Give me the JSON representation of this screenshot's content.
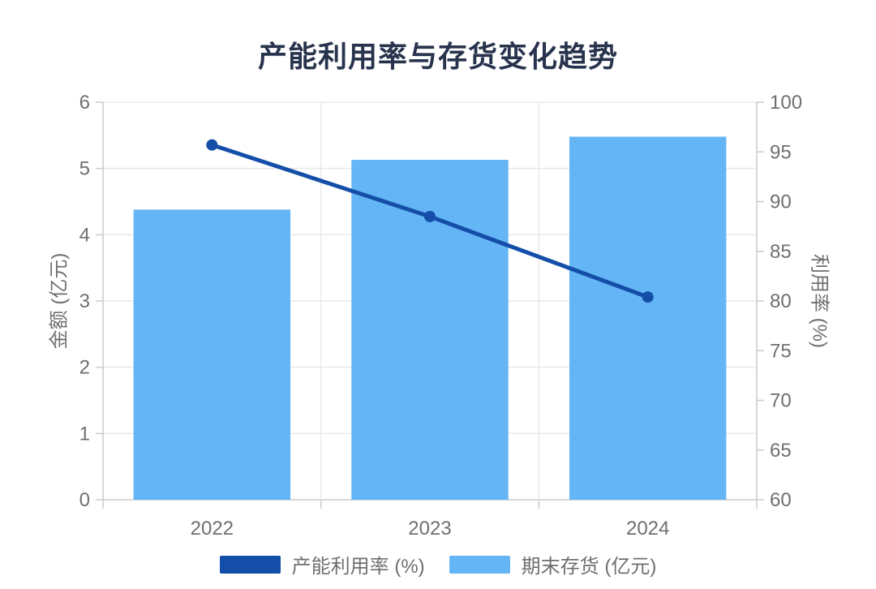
{
  "chart_data": {
    "type": "combo-bar-line",
    "title": "产能利用率与存货变化趋势",
    "categories": [
      "2022",
      "2023",
      "2024"
    ],
    "series": [
      {
        "name": "产能利用率 (%)",
        "type": "line",
        "y_axis": "right",
        "values": [
          95.7,
          88.5,
          80.4
        ],
        "color": "#144ea8"
      },
      {
        "name": "期末存货 (亿元)",
        "type": "bar",
        "y_axis": "left",
        "values": [
          4.38,
          5.13,
          5.48
        ],
        "color": "#64b5f6"
      }
    ],
    "left_axis": {
      "name": "金额 (亿元)",
      "min": 0,
      "max": 6,
      "step": 1
    },
    "right_axis": {
      "name": "利用率 (%)",
      "min": 60,
      "max": 100,
      "step": 5
    },
    "grid": true,
    "legend_position": "bottom",
    "background_color": "#ffffff",
    "title_color": "#28344d",
    "label_color": "#6f6f6f",
    "grid_color": "#e9e9e9",
    "axis_color": "#cccccc"
  }
}
